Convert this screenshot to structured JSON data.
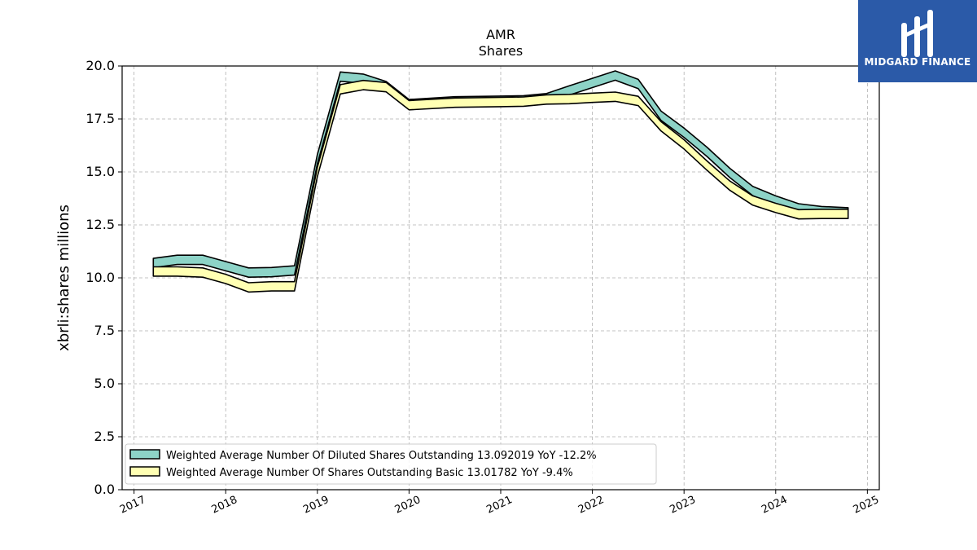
{
  "brand": {
    "name": "MIDGARD FINANCE",
    "logo_color": "#2b5aa8",
    "icon": "midgard-logo-icon"
  },
  "chart_data": {
    "type": "line",
    "title": "AMR",
    "subtitle": "Shares",
    "ylabel": "xbrli:shares millions",
    "ylim": [
      0,
      20
    ],
    "xlim": [
      2016.87,
      2025.13
    ],
    "yticks": [
      "0.0",
      "2.5",
      "5.0",
      "7.5",
      "10.0",
      "12.5",
      "15.0",
      "17.5",
      "20.0"
    ],
    "xticks": [
      "2017",
      "2018",
      "2019",
      "2020",
      "2021",
      "2022",
      "2023",
      "2024",
      "2025"
    ],
    "grid": true,
    "legend_position": "lower-left",
    "series": [
      {
        "name": "Weighted Average Number Of Diluted Shares Outstanding",
        "legend_label": "Weighted Average Number Of Diluted Shares Outstanding  13.092019 YoY -12.2%",
        "color": "#8dd3c7",
        "x": [
          2017.21,
          2017.47,
          2017.75,
          2018.0,
          2018.25,
          2018.5,
          2018.75,
          2019.0,
          2019.25,
          2019.5,
          2019.75,
          2020.0,
          2020.5,
          2021.0,
          2021.25,
          2021.5,
          2021.75,
          2022.0,
          2022.25,
          2022.5,
          2022.75,
          2023.0,
          2023.25,
          2023.5,
          2023.75,
          2024.0,
          2024.25,
          2024.5,
          2024.79
        ],
        "values": [
          10.7,
          10.85,
          10.85,
          10.55,
          10.25,
          10.27,
          10.35,
          15.6,
          19.5,
          19.4,
          19.05,
          18.2,
          18.33,
          18.36,
          18.38,
          18.48,
          18.85,
          19.2,
          19.55,
          19.15,
          17.65,
          16.85,
          15.95,
          14.95,
          14.1,
          13.65,
          13.28,
          13.15,
          13.09
        ]
      },
      {
        "name": "Weighted Average Number Of Shares Outstanding Basic",
        "legend_label": "Weighted Average Number Of Shares Outstanding Basic  13.01782 YoY -9.4%",
        "color": "#ffffb3",
        "x": [
          2017.21,
          2017.47,
          2017.75,
          2018.0,
          2018.25,
          2018.5,
          2018.75,
          2019.0,
          2019.25,
          2019.5,
          2019.75,
          2020.0,
          2020.5,
          2021.0,
          2021.25,
          2021.5,
          2021.75,
          2022.0,
          2022.25,
          2022.5,
          2022.75,
          2023.0,
          2023.25,
          2023.5,
          2023.75,
          2024.0,
          2024.25,
          2024.5,
          2024.79
        ],
        "values": [
          10.3,
          10.3,
          10.25,
          9.95,
          9.55,
          9.6,
          9.6,
          15.0,
          18.9,
          19.1,
          19.0,
          18.15,
          18.27,
          18.3,
          18.32,
          18.42,
          18.44,
          18.5,
          18.55,
          18.35,
          17.15,
          16.3,
          15.3,
          14.35,
          13.65,
          13.3,
          13.0,
          13.02,
          13.02
        ]
      }
    ]
  }
}
